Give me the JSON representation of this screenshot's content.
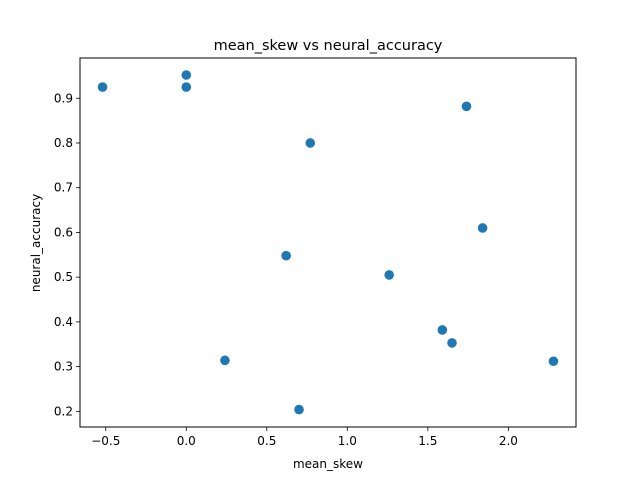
{
  "chart_data": {
    "type": "scatter",
    "title": "mean_skew vs neural_accuracy",
    "xlabel": "mean_skew",
    "ylabel": "neural_accuracy",
    "xlim": [
      -0.66,
      2.42
    ],
    "ylim": [
      0.165,
      0.99
    ],
    "xticks": [
      -0.5,
      0.0,
      0.5,
      1.0,
      1.5,
      2.0
    ],
    "xtick_labels": [
      "−0.5",
      "0.0",
      "0.5",
      "1.0",
      "1.5",
      "2.0"
    ],
    "yticks": [
      0.2,
      0.3,
      0.4,
      0.5,
      0.6,
      0.7,
      0.8,
      0.9
    ],
    "ytick_labels": [
      "0.2",
      "0.3",
      "0.4",
      "0.5",
      "0.6",
      "0.7",
      "0.8",
      "0.9"
    ],
    "grid": false,
    "marker_color": "#1f77b4",
    "points": [
      {
        "x": -0.52,
        "y": 0.925
      },
      {
        "x": 0.0,
        "y": 0.952
      },
      {
        "x": 0.0,
        "y": 0.925
      },
      {
        "x": 0.24,
        "y": 0.314
      },
      {
        "x": 0.62,
        "y": 0.548
      },
      {
        "x": 0.7,
        "y": 0.204
      },
      {
        "x": 0.77,
        "y": 0.8
      },
      {
        "x": 1.26,
        "y": 0.505
      },
      {
        "x": 1.59,
        "y": 0.382
      },
      {
        "x": 1.65,
        "y": 0.353
      },
      {
        "x": 1.74,
        "y": 0.882
      },
      {
        "x": 1.84,
        "y": 0.61
      },
      {
        "x": 2.28,
        "y": 0.312
      }
    ]
  }
}
